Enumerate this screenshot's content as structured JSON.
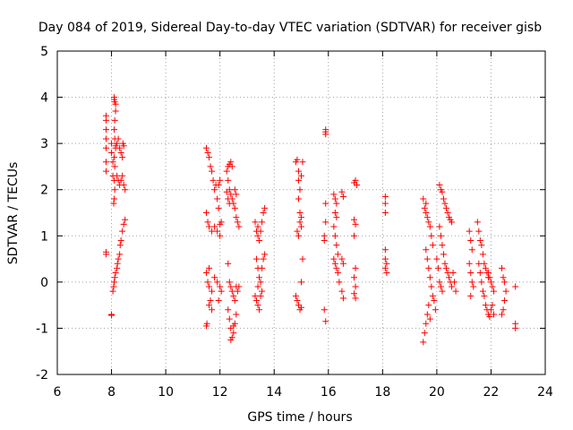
{
  "chart_data": {
    "type": "scatter",
    "title": "Day 084 of 2019, Sidereal Day-to-day VTEC variation (SDTVAR) for receiver gisb",
    "xlabel": "GPS time / hours",
    "ylabel": "SDTVAR / TECUs",
    "xlim": [
      6,
      24
    ],
    "ylim": [
      -2,
      5
    ],
    "xticks": [
      6,
      8,
      10,
      12,
      14,
      16,
      18,
      20,
      22,
      24
    ],
    "yticks": [
      -2,
      -1,
      0,
      1,
      2,
      3,
      4,
      5
    ],
    "grid": true,
    "marker": "+",
    "color": "#ff0000",
    "series": [
      {
        "name": "SDTVAR",
        "points": [
          [
            7.8,
            3.6
          ],
          [
            7.8,
            3.5
          ],
          [
            7.8,
            3.3
          ],
          [
            7.8,
            3.1
          ],
          [
            7.8,
            2.9
          ],
          [
            7.8,
            2.6
          ],
          [
            7.8,
            2.4
          ],
          [
            7.8,
            0.65
          ],
          [
            7.8,
            0.6
          ],
          [
            8.0,
            -0.7
          ],
          [
            8.0,
            -0.72
          ],
          [
            8.0,
            3.0
          ],
          [
            8.0,
            2.8
          ],
          [
            8.05,
            2.6
          ],
          [
            8.05,
            2.3
          ],
          [
            8.1,
            4.0
          ],
          [
            8.1,
            3.95
          ],
          [
            8.12,
            3.9
          ],
          [
            8.15,
            3.85
          ],
          [
            8.15,
            3.7
          ],
          [
            8.12,
            3.5
          ],
          [
            8.1,
            3.3
          ],
          [
            8.12,
            3.1
          ],
          [
            8.15,
            2.9
          ],
          [
            8.1,
            2.7
          ],
          [
            8.12,
            2.5
          ],
          [
            8.1,
            2.2
          ],
          [
            8.12,
            2.0
          ],
          [
            8.1,
            1.8
          ],
          [
            8.08,
            1.7
          ],
          [
            8.15,
            2.95
          ],
          [
            8.2,
            3.0
          ],
          [
            8.25,
            3.1
          ],
          [
            8.3,
            2.9
          ],
          [
            8.35,
            2.8
          ],
          [
            8.4,
            2.7
          ],
          [
            8.2,
            2.3
          ],
          [
            8.25,
            2.2
          ],
          [
            8.3,
            2.1
          ],
          [
            8.35,
            2.2
          ],
          [
            8.4,
            2.3
          ],
          [
            8.45,
            2.1
          ],
          [
            8.5,
            2.0
          ],
          [
            8.42,
            3.0
          ],
          [
            8.45,
            2.95
          ],
          [
            8.05,
            -0.2
          ],
          [
            8.08,
            -0.1
          ],
          [
            8.1,
            0.0
          ],
          [
            8.12,
            0.1
          ],
          [
            8.15,
            0.2
          ],
          [
            8.2,
            0.3
          ],
          [
            8.22,
            0.4
          ],
          [
            8.25,
            0.5
          ],
          [
            8.3,
            0.6
          ],
          [
            8.32,
            0.8
          ],
          [
            8.35,
            0.9
          ],
          [
            8.4,
            1.1
          ],
          [
            8.45,
            1.25
          ],
          [
            8.5,
            1.35
          ],
          [
            11.5,
            2.9
          ],
          [
            11.55,
            2.8
          ],
          [
            11.6,
            2.7
          ],
          [
            11.65,
            2.5
          ],
          [
            11.7,
            2.4
          ],
          [
            11.75,
            2.2
          ],
          [
            11.8,
            2.0
          ],
          [
            11.9,
            1.8
          ],
          [
            11.95,
            2.1
          ],
          [
            12.0,
            2.2
          ],
          [
            11.85,
            2.1
          ],
          [
            11.5,
            1.5
          ],
          [
            11.55,
            1.3
          ],
          [
            11.6,
            1.2
          ],
          [
            11.7,
            1.1
          ],
          [
            11.8,
            1.2
          ],
          [
            11.9,
            1.1
          ],
          [
            12.0,
            1.25
          ],
          [
            12.05,
            1.3
          ],
          [
            11.95,
            1.6
          ],
          [
            12.0,
            1.0
          ],
          [
            11.5,
            0.2
          ],
          [
            11.55,
            0.0
          ],
          [
            11.6,
            -0.1
          ],
          [
            11.7,
            -0.2
          ],
          [
            11.8,
            0.1
          ],
          [
            11.9,
            0.0
          ],
          [
            12.0,
            -0.1
          ],
          [
            12.05,
            -0.2
          ],
          [
            11.6,
            0.3
          ],
          [
            11.65,
            -0.4
          ],
          [
            11.5,
            -0.95
          ],
          [
            11.52,
            -0.9
          ],
          [
            11.6,
            -0.5
          ],
          [
            11.7,
            -0.6
          ],
          [
            11.95,
            -0.4
          ],
          [
            12.25,
            2.4
          ],
          [
            12.3,
            2.5
          ],
          [
            12.35,
            2.55
          ],
          [
            12.4,
            2.6
          ],
          [
            12.45,
            2.5
          ],
          [
            12.3,
            2.2
          ],
          [
            12.35,
            2.0
          ],
          [
            12.4,
            1.9
          ],
          [
            12.45,
            1.8
          ],
          [
            12.5,
            1.7
          ],
          [
            12.3,
            1.8
          ],
          [
            12.35,
            1.7
          ],
          [
            12.25,
            1.95
          ],
          [
            12.55,
            1.6
          ],
          [
            12.6,
            1.4
          ],
          [
            12.65,
            1.3
          ],
          [
            12.7,
            1.2
          ],
          [
            12.6,
            1.9
          ],
          [
            12.55,
            2.0
          ],
          [
            12.3,
            0.4
          ],
          [
            12.35,
            0.0
          ],
          [
            12.4,
            -0.1
          ],
          [
            12.45,
            -0.2
          ],
          [
            12.5,
            -0.3
          ],
          [
            12.55,
            -0.4
          ],
          [
            12.6,
            -0.1
          ],
          [
            12.65,
            -0.2
          ],
          [
            12.7,
            -0.1
          ],
          [
            12.3,
            -0.6
          ],
          [
            12.35,
            -0.8
          ],
          [
            12.4,
            -1.0
          ],
          [
            12.45,
            -1.2
          ],
          [
            12.5,
            -1.1
          ],
          [
            12.55,
            -0.9
          ],
          [
            12.6,
            -0.7
          ],
          [
            12.4,
            -1.25
          ],
          [
            12.5,
            -0.95
          ],
          [
            13.3,
            1.3
          ],
          [
            13.35,
            1.1
          ],
          [
            13.4,
            1.0
          ],
          [
            13.45,
            0.9
          ],
          [
            13.5,
            1.1
          ],
          [
            13.55,
            1.3
          ],
          [
            13.6,
            1.5
          ],
          [
            13.65,
            1.6
          ],
          [
            13.4,
            1.2
          ],
          [
            13.35,
            0.5
          ],
          [
            13.4,
            0.3
          ],
          [
            13.45,
            0.1
          ],
          [
            13.5,
            0.0
          ],
          [
            13.55,
            0.3
          ],
          [
            13.6,
            0.5
          ],
          [
            13.65,
            0.6
          ],
          [
            13.4,
            -0.1
          ],
          [
            13.3,
            -0.3
          ],
          [
            13.35,
            -0.4
          ],
          [
            13.4,
            -0.5
          ],
          [
            13.45,
            -0.6
          ],
          [
            13.5,
            -0.3
          ],
          [
            13.55,
            -0.2
          ],
          [
            14.8,
            2.6
          ],
          [
            14.85,
            2.65
          ],
          [
            14.9,
            2.4
          ],
          [
            14.95,
            2.0
          ],
          [
            15.0,
            2.3
          ],
          [
            15.05,
            2.6
          ],
          [
            14.9,
            1.8
          ],
          [
            14.95,
            1.5
          ],
          [
            15.0,
            1.2
          ],
          [
            14.85,
            1.1
          ],
          [
            14.9,
            1.0
          ],
          [
            15.0,
            1.4
          ],
          [
            14.95,
            1.3
          ],
          [
            14.9,
            2.2
          ],
          [
            14.8,
            -0.3
          ],
          [
            14.85,
            -0.4
          ],
          [
            14.9,
            -0.5
          ],
          [
            14.95,
            -0.6
          ],
          [
            15.0,
            0.0
          ],
          [
            15.05,
            0.5
          ],
          [
            15.0,
            -0.55
          ],
          [
            15.9,
            3.25
          ],
          [
            15.9,
            3.3
          ],
          [
            15.9,
            3.2
          ],
          [
            15.9,
            1.7
          ],
          [
            15.9,
            1.3
          ],
          [
            15.85,
            1.0
          ],
          [
            15.85,
            0.9
          ],
          [
            15.85,
            -0.6
          ],
          [
            15.9,
            -0.85
          ],
          [
            16.2,
            1.9
          ],
          [
            16.25,
            1.8
          ],
          [
            16.3,
            1.7
          ],
          [
            16.25,
            1.5
          ],
          [
            16.3,
            1.4
          ],
          [
            16.2,
            1.2
          ],
          [
            16.25,
            1.0
          ],
          [
            16.3,
            0.8
          ],
          [
            16.35,
            0.6
          ],
          [
            16.2,
            0.5
          ],
          [
            16.25,
            0.4
          ],
          [
            16.3,
            0.3
          ],
          [
            16.35,
            0.2
          ],
          [
            16.4,
            0.0
          ],
          [
            16.5,
            1.95
          ],
          [
            16.55,
            1.85
          ],
          [
            16.5,
            -0.2
          ],
          [
            16.55,
            -0.35
          ],
          [
            16.5,
            0.5
          ],
          [
            16.55,
            0.4
          ],
          [
            16.95,
            2.15
          ],
          [
            17.0,
            2.2
          ],
          [
            17.05,
            2.1
          ],
          [
            16.95,
            1.35
          ],
          [
            17.0,
            1.25
          ],
          [
            16.95,
            1.0
          ],
          [
            17.0,
            0.3
          ],
          [
            16.95,
            0.1
          ],
          [
            17.0,
            -0.1
          ],
          [
            16.95,
            -0.25
          ],
          [
            17.0,
            -0.35
          ],
          [
            18.1,
            1.85
          ],
          [
            18.1,
            1.7
          ],
          [
            18.1,
            1.5
          ],
          [
            18.1,
            0.7
          ],
          [
            18.1,
            0.5
          ],
          [
            18.15,
            0.4
          ],
          [
            18.1,
            0.3
          ],
          [
            18.15,
            0.2
          ],
          [
            19.5,
            1.8
          ],
          [
            19.55,
            1.6
          ],
          [
            19.6,
            1.5
          ],
          [
            19.65,
            1.4
          ],
          [
            19.7,
            1.3
          ],
          [
            19.75,
            1.2
          ],
          [
            19.8,
            1.0
          ],
          [
            19.85,
            0.8
          ],
          [
            19.6,
            1.7
          ],
          [
            19.6,
            0.7
          ],
          [
            19.65,
            0.5
          ],
          [
            19.7,
            0.3
          ],
          [
            19.75,
            0.1
          ],
          [
            19.8,
            -0.1
          ],
          [
            19.85,
            -0.3
          ],
          [
            19.9,
            -0.4
          ],
          [
            19.95,
            -0.6
          ],
          [
            19.5,
            -1.3
          ],
          [
            19.55,
            -1.1
          ],
          [
            19.6,
            -0.9
          ],
          [
            19.65,
            -0.7
          ],
          [
            19.7,
            -0.5
          ],
          [
            19.75,
            -0.8
          ],
          [
            20.1,
            2.1
          ],
          [
            20.15,
            2.0
          ],
          [
            20.2,
            1.95
          ],
          [
            20.25,
            1.8
          ],
          [
            20.3,
            1.7
          ],
          [
            20.35,
            1.6
          ],
          [
            20.4,
            1.5
          ],
          [
            20.45,
            1.4
          ],
          [
            20.5,
            1.35
          ],
          [
            20.55,
            1.3
          ],
          [
            20.1,
            1.2
          ],
          [
            20.15,
            1.0
          ],
          [
            20.2,
            0.8
          ],
          [
            20.25,
            0.6
          ],
          [
            20.3,
            0.4
          ],
          [
            20.35,
            0.3
          ],
          [
            20.4,
            0.2
          ],
          [
            20.45,
            0.1
          ],
          [
            20.5,
            0.0
          ],
          [
            20.55,
            -0.1
          ],
          [
            20.0,
            0.5
          ],
          [
            20.05,
            0.3
          ],
          [
            20.1,
            0.0
          ],
          [
            20.15,
            -0.1
          ],
          [
            20.2,
            -0.2
          ],
          [
            20.6,
            0.2
          ],
          [
            20.65,
            0.0
          ],
          [
            20.7,
            -0.2
          ],
          [
            21.2,
            1.1
          ],
          [
            21.25,
            0.9
          ],
          [
            21.3,
            0.7
          ],
          [
            21.2,
            0.4
          ],
          [
            21.25,
            0.2
          ],
          [
            21.3,
            0.0
          ],
          [
            21.35,
            -0.1
          ],
          [
            21.25,
            -0.3
          ],
          [
            21.5,
            1.3
          ],
          [
            21.55,
            1.1
          ],
          [
            21.6,
            0.9
          ],
          [
            21.65,
            0.8
          ],
          [
            21.7,
            0.6
          ],
          [
            21.75,
            0.4
          ],
          [
            21.8,
            0.3
          ],
          [
            21.85,
            0.2
          ],
          [
            21.9,
            0.1
          ],
          [
            21.55,
            0.4
          ],
          [
            21.6,
            0.2
          ],
          [
            21.65,
            0.0
          ],
          [
            21.7,
            -0.2
          ],
          [
            21.75,
            -0.3
          ],
          [
            21.8,
            -0.5
          ],
          [
            21.85,
            -0.6
          ],
          [
            21.9,
            -0.7
          ],
          [
            21.95,
            -0.75
          ],
          [
            22.0,
            -0.6
          ],
          [
            22.05,
            -0.5
          ],
          [
            22.1,
            -0.7
          ],
          [
            21.9,
            0.2
          ],
          [
            21.95,
            0.1
          ],
          [
            22.0,
            0.0
          ],
          [
            22.05,
            -0.1
          ],
          [
            22.1,
            -0.2
          ],
          [
            22.4,
            0.3
          ],
          [
            22.45,
            0.1
          ],
          [
            22.5,
            0.0
          ],
          [
            22.55,
            -0.2
          ],
          [
            22.5,
            -0.4
          ],
          [
            22.45,
            -0.6
          ],
          [
            22.4,
            -0.7
          ],
          [
            22.9,
            -0.1
          ],
          [
            22.9,
            -0.9
          ],
          [
            22.9,
            -1.0
          ]
        ]
      }
    ]
  }
}
